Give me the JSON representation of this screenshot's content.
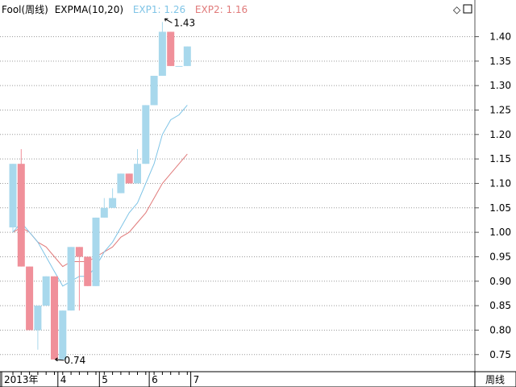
{
  "chart_data": {
    "type": "candlestick",
    "title": "Fool(周线)",
    "indicator": {
      "label": "EXPMA(10,20)",
      "exp1_label": "EXP1: 1.26",
      "exp2_label": "EXP2: 1.16",
      "exp1_color": "#7fc4e6",
      "exp2_color": "#e07a7a"
    },
    "up_color": "#a8d8ec",
    "down_color": "#f0909a",
    "ylim": [
      0.715,
      1.475
    ],
    "y_ticks": [
      "1.40",
      "1.35",
      "1.30",
      "1.25",
      "1.20",
      "1.15",
      "1.10",
      "1.05",
      "1.00",
      "0.95",
      "0.90",
      "0.85",
      "0.80",
      "0.75"
    ],
    "x_ticks": [
      {
        "label": "2013年",
        "index": 0
      },
      {
        "label": "4",
        "index": 6
      },
      {
        "label": "5",
        "index": 11
      },
      {
        "label": "6",
        "index": 17
      },
      {
        "label": "7",
        "index": 22
      }
    ],
    "candles": [
      {
        "open": 1.01,
        "high": 1.14,
        "low": 1.0,
        "close": 1.14
      },
      {
        "open": 1.14,
        "high": 1.17,
        "low": 0.93,
        "close": 0.93
      },
      {
        "open": 0.93,
        "high": 0.93,
        "low": 0.8,
        "close": 0.8
      },
      {
        "open": 0.8,
        "high": 0.85,
        "low": 0.76,
        "close": 0.85
      },
      {
        "open": 0.85,
        "high": 0.91,
        "low": 0.85,
        "close": 0.91
      },
      {
        "open": 0.91,
        "high": 0.91,
        "low": 0.74,
        "close": 0.74
      },
      {
        "open": 0.74,
        "high": 0.84,
        "low": 0.74,
        "close": 0.84
      },
      {
        "open": 0.84,
        "high": 0.97,
        "low": 0.84,
        "close": 0.97
      },
      {
        "open": 0.97,
        "high": 0.97,
        "low": 0.84,
        "close": 0.95
      },
      {
        "open": 0.95,
        "high": 0.95,
        "low": 0.89,
        "close": 0.89
      },
      {
        "open": 0.89,
        "high": 1.03,
        "low": 0.89,
        "close": 1.03
      },
      {
        "open": 1.03,
        "high": 1.07,
        "low": 1.03,
        "close": 1.05
      },
      {
        "open": 1.05,
        "high": 1.09,
        "low": 1.05,
        "close": 1.07
      },
      {
        "open": 1.08,
        "high": 1.12,
        "low": 1.08,
        "close": 1.12
      },
      {
        "open": 1.12,
        "high": 1.12,
        "low": 1.1,
        "close": 1.1
      },
      {
        "open": 1.1,
        "high": 1.17,
        "low": 1.1,
        "close": 1.14
      },
      {
        "open": 1.14,
        "high": 1.26,
        "low": 1.14,
        "close": 1.26
      },
      {
        "open": 1.26,
        "high": 1.32,
        "low": 1.26,
        "close": 1.32
      },
      {
        "open": 1.32,
        "high": 1.43,
        "low": 1.32,
        "close": 1.41
      },
      {
        "open": 1.41,
        "high": 1.41,
        "low": 1.34,
        "close": 1.34
      },
      {
        "open": 1.34,
        "high": 1.34,
        "low": 1.34,
        "close": 1.34
      },
      {
        "open": 1.34,
        "high": 1.38,
        "low": 1.34,
        "close": 1.38
      }
    ],
    "exp1": [
      1.0,
      1.02,
      1.0,
      0.98,
      0.95,
      0.92,
      0.89,
      0.9,
      0.91,
      0.91,
      0.93,
      0.96,
      0.98,
      1.01,
      1.04,
      1.06,
      1.1,
      1.14,
      1.2,
      1.23,
      1.24,
      1.26
    ],
    "exp2": [
      1.0,
      1.01,
      1.0,
      0.98,
      0.97,
      0.95,
      0.93,
      0.94,
      0.94,
      0.94,
      0.95,
      0.96,
      0.97,
      0.99,
      1.0,
      1.02,
      1.04,
      1.07,
      1.1,
      1.12,
      1.14,
      1.16
    ],
    "annotations": [
      {
        "text": "1.43",
        "candle": 18,
        "price": 1.43,
        "position": "top"
      },
      {
        "text": "0.74",
        "candle": 5,
        "price": 0.74,
        "position": "bottom"
      }
    ],
    "period_tab": "周线"
  }
}
